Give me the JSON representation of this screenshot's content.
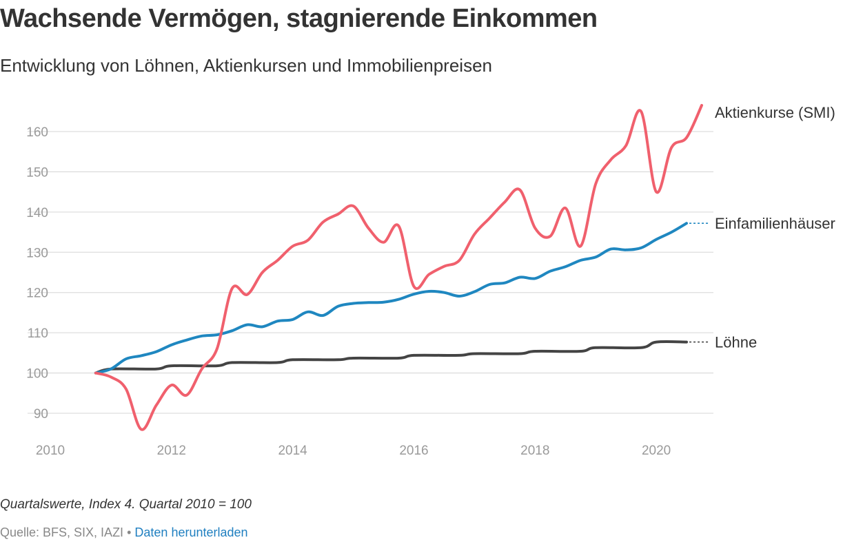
{
  "header": {
    "title": "Wachsende Vermögen, stagnierende Einkommen",
    "subtitle": "Entwicklung von Löhnen, Aktienkursen und Immobilienpreisen"
  },
  "footer": {
    "note": "Quartalswerte, Index 4. Quartal 2010 = 100",
    "source_prefix": "Quelle: BFS, SIX, IAZI",
    "separator": "•",
    "download_label": "Daten herunterladen"
  },
  "colors": {
    "aktien": "#f0606d",
    "haeuser": "#1f87c0",
    "loehne": "#444444",
    "grid": "#dddddd",
    "axis_text": "#9a9a9a"
  },
  "chart_data": {
    "type": "line",
    "title": "Wachsende Vermögen, stagnierende Einkommen",
    "subtitle": "Entwicklung von Löhnen, Aktienkursen und Immobilienpreisen",
    "xlabel": "",
    "ylabel": "",
    "xlim": [
      2010,
      2021
    ],
    "ylim": [
      85,
      167
    ],
    "xticks": [
      "2010",
      "2012",
      "2014",
      "2016",
      "2018",
      "2020"
    ],
    "yticks": [
      "90",
      "100",
      "110",
      "120",
      "130",
      "140",
      "150",
      "160"
    ],
    "grid": true,
    "legend": "direct labels at line ends (right)",
    "series": [
      {
        "name": "Aktienkurse (SMI)",
        "key": "aktien",
        "x": [
          2010.75,
          2011.0,
          2011.25,
          2011.5,
          2011.75,
          2012.0,
          2012.25,
          2012.5,
          2012.75,
          2013.0,
          2013.25,
          2013.5,
          2013.75,
          2014.0,
          2014.25,
          2014.5,
          2014.75,
          2015.0,
          2015.25,
          2015.5,
          2015.75,
          2016.0,
          2016.25,
          2016.5,
          2016.75,
          2017.0,
          2017.25,
          2017.5,
          2017.75,
          2018.0,
          2018.25,
          2018.5,
          2018.75,
          2019.0,
          2019.25,
          2019.5,
          2019.75,
          2020.0,
          2020.25,
          2020.5,
          2020.75
        ],
        "values": [
          100,
          99,
          96,
          86,
          92,
          97,
          94.5,
          101,
          106,
          121,
          119.5,
          125,
          128,
          131.5,
          133,
          137.5,
          139.5,
          141.5,
          136,
          132.5,
          136.5,
          121.5,
          124.5,
          126.5,
          128,
          134.5,
          138.5,
          142.5,
          145.5,
          136,
          134,
          141,
          131.5,
          147,
          153,
          156.5,
          165,
          145,
          156,
          158.5,
          166.5
        ],
        "end_label": "Aktienkurse (SMI)"
      },
      {
        "name": "Einfamilienhäuser",
        "key": "haeuser",
        "x": [
          2010.75,
          2011.0,
          2011.25,
          2011.5,
          2011.75,
          2012.0,
          2012.25,
          2012.5,
          2012.75,
          2013.0,
          2013.25,
          2013.5,
          2013.75,
          2014.0,
          2014.25,
          2014.5,
          2014.75,
          2015.0,
          2015.25,
          2015.5,
          2015.75,
          2016.0,
          2016.25,
          2016.5,
          2016.75,
          2017.0,
          2017.25,
          2017.5,
          2017.75,
          2018.0,
          2018.25,
          2018.5,
          2018.75,
          2019.0,
          2019.25,
          2019.5,
          2019.75,
          2020.0,
          2020.25,
          2020.5
        ],
        "values": [
          100,
          101,
          103.5,
          104.3,
          105.3,
          107,
          108.2,
          109.2,
          109.5,
          110.5,
          112,
          111.5,
          112.9,
          113.3,
          115.2,
          114.3,
          116.6,
          117.3,
          117.5,
          117.6,
          118.3,
          119.6,
          120.3,
          120,
          119.1,
          120.2,
          122,
          122.4,
          123.8,
          123.5,
          125.3,
          126.4,
          128,
          128.8,
          130.8,
          130.6,
          131.1,
          133.2,
          135,
          137.2
        ],
        "end_label": "Einfamilienhäuser"
      },
      {
        "name": "Löhne",
        "key": "loehne",
        "x": [
          2010.75,
          2011.0,
          2011.75,
          2012.0,
          2012.75,
          2013.0,
          2013.75,
          2014.0,
          2014.75,
          2015.0,
          2015.75,
          2016.0,
          2016.75,
          2017.0,
          2017.75,
          2018.0,
          2018.75,
          2019.0,
          2019.75,
          2020.0,
          2020.5
        ],
        "values": [
          100,
          101,
          101,
          101.8,
          101.8,
          102.6,
          102.6,
          103.3,
          103.3,
          103.7,
          103.7,
          104.4,
          104.4,
          104.8,
          104.8,
          105.4,
          105.4,
          106.3,
          106.3,
          107.7,
          107.7
        ],
        "end_label": "Löhne"
      }
    ]
  }
}
